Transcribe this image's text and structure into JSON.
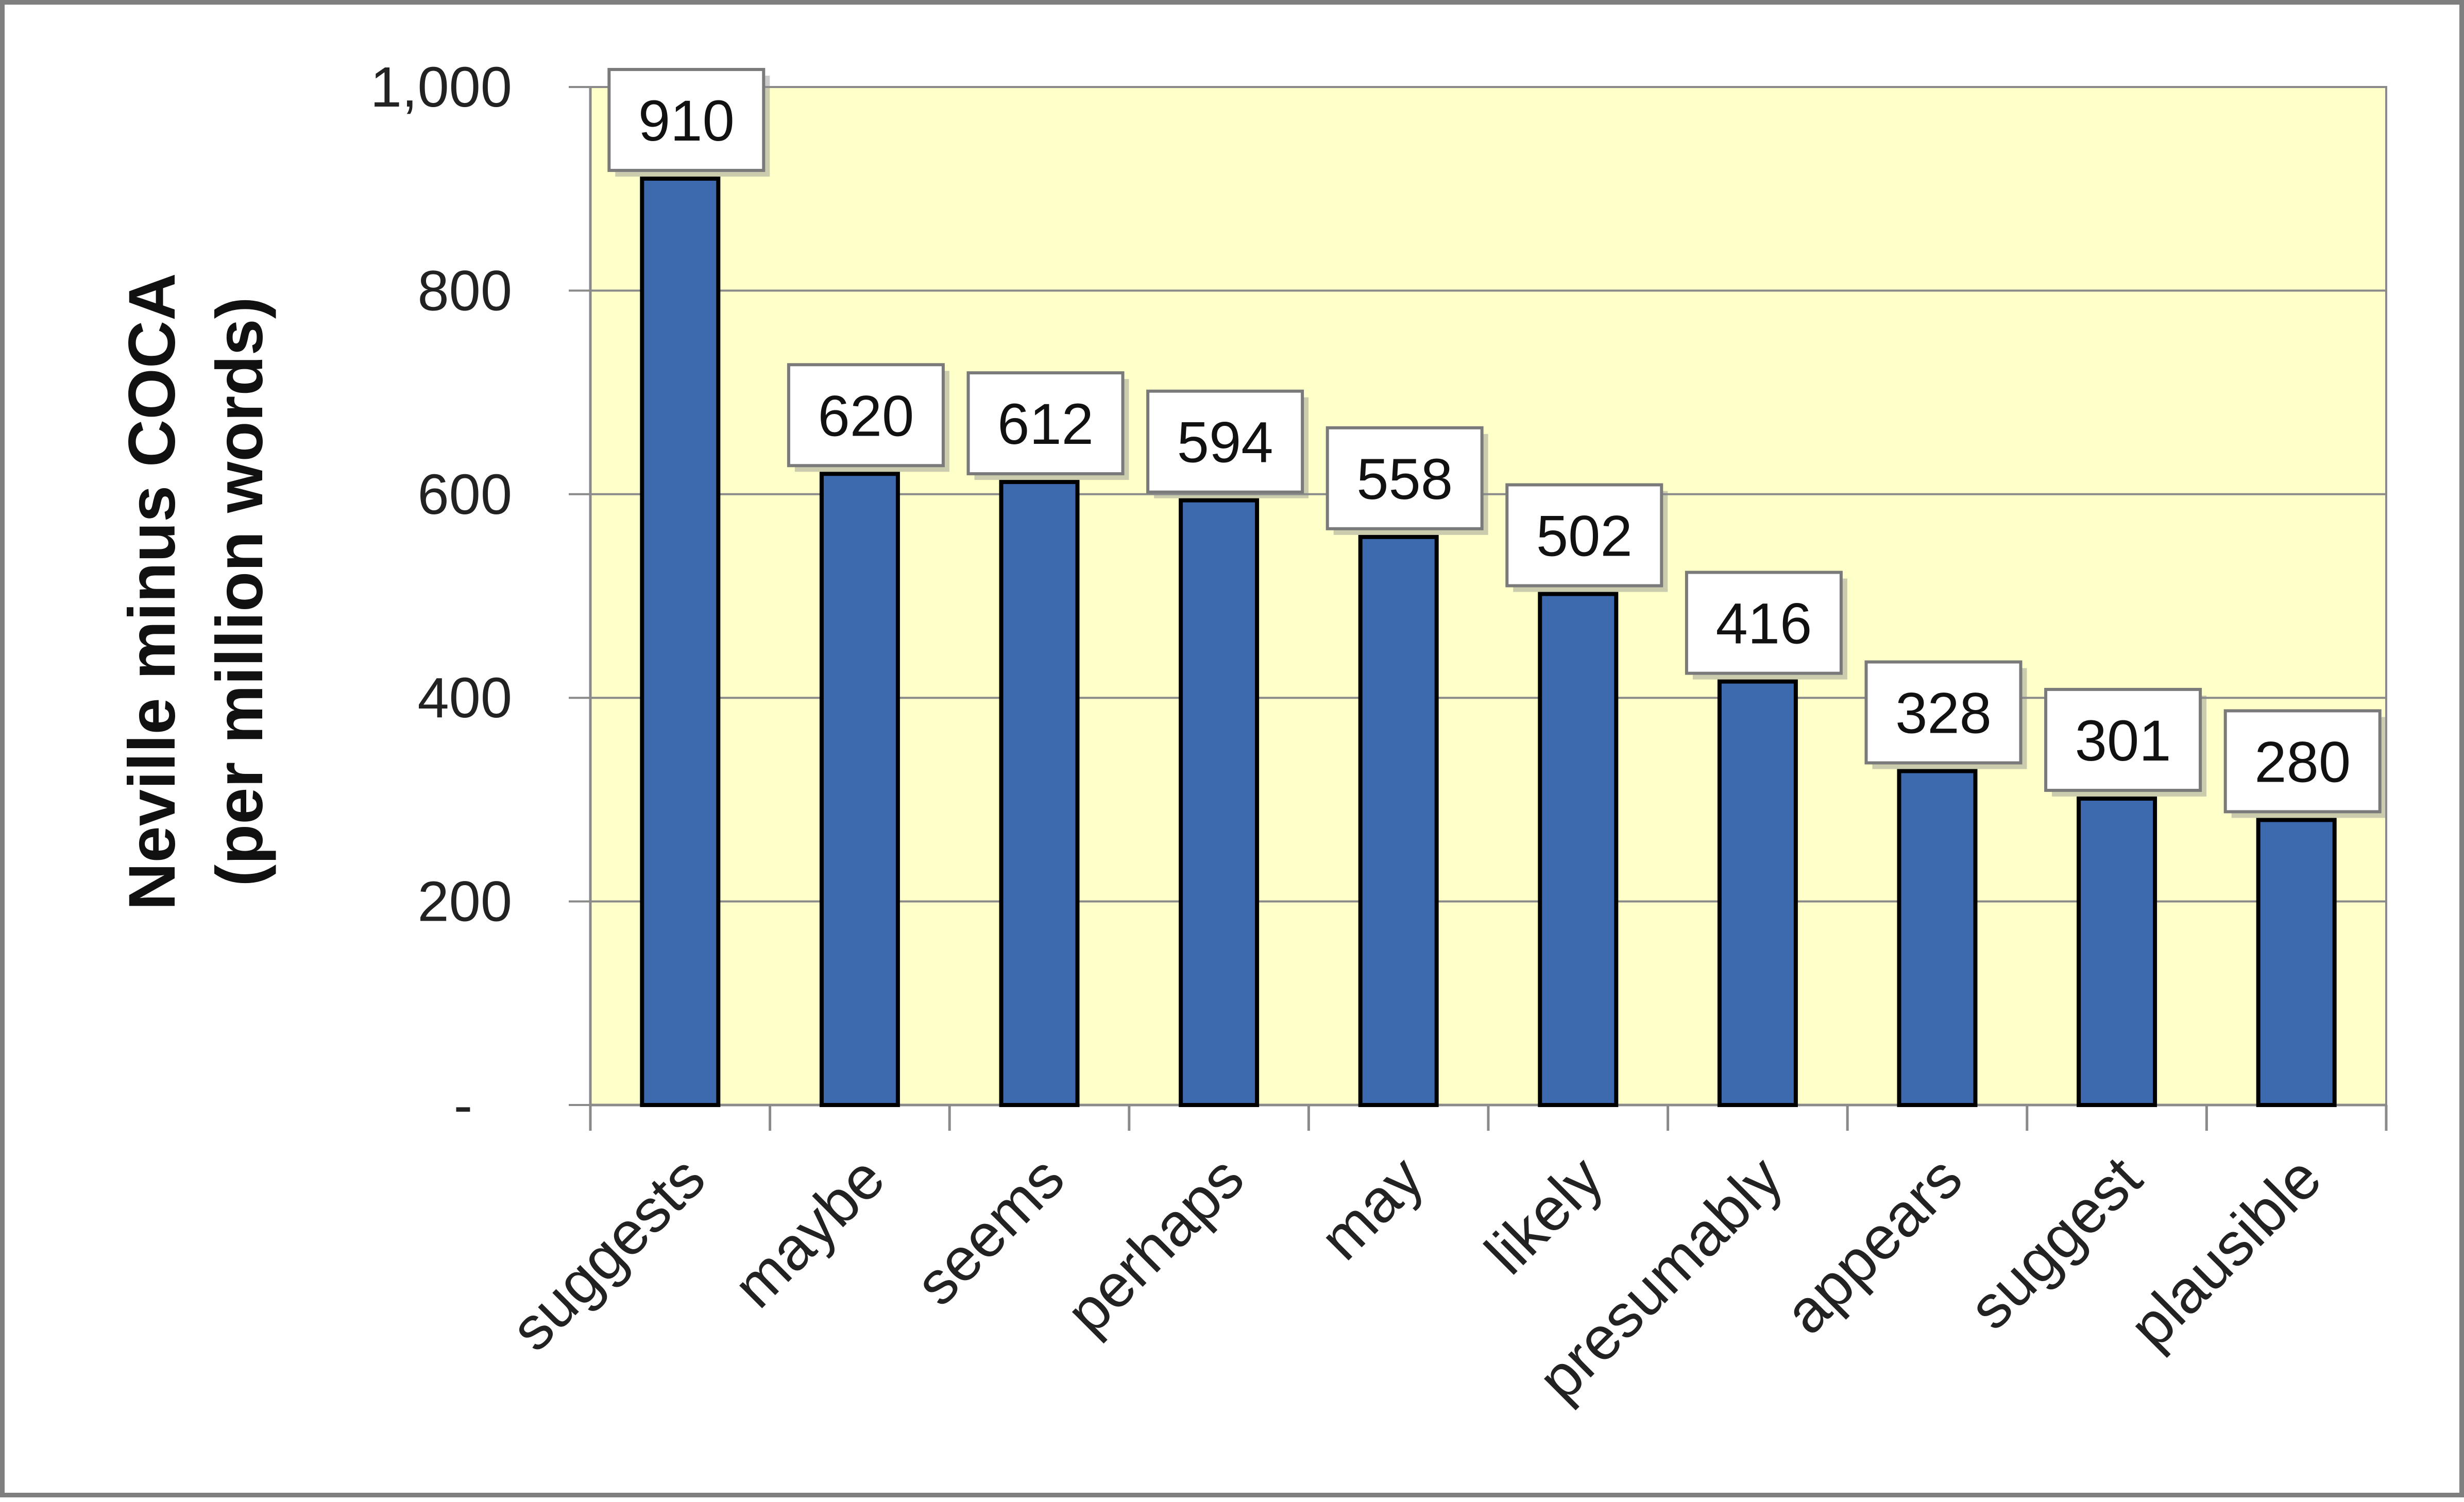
{
  "chart_data": {
    "type": "bar",
    "categories": [
      "suggests",
      "maybe",
      "seems",
      "perhaps",
      "may",
      "likely",
      "presumably",
      "appears",
      "suggest",
      "plausible"
    ],
    "values": [
      910,
      620,
      612,
      594,
      558,
      502,
      416,
      328,
      301,
      280
    ],
    "data_labels": [
      "910",
      "620",
      "612",
      "594",
      "558",
      "502",
      "416",
      "328",
      "301",
      "280"
    ],
    "ylabel": "Neville minus COCA",
    "ylabel_sub": "(per million words)",
    "ylim": [
      0,
      1000
    ],
    "yticks": [
      0,
      200,
      400,
      600,
      800,
      1000
    ],
    "ytick_labels": [
      "-",
      "200",
      "400",
      "600",
      "800",
      "1,000"
    ],
    "grid": true,
    "legend": "none",
    "colors": {
      "bar": "#3d6aae",
      "bar_edge": "#000000",
      "plot_background": "#ffffc9",
      "gridline": "#8a8a8a",
      "frame": "#7f7f7f"
    }
  }
}
